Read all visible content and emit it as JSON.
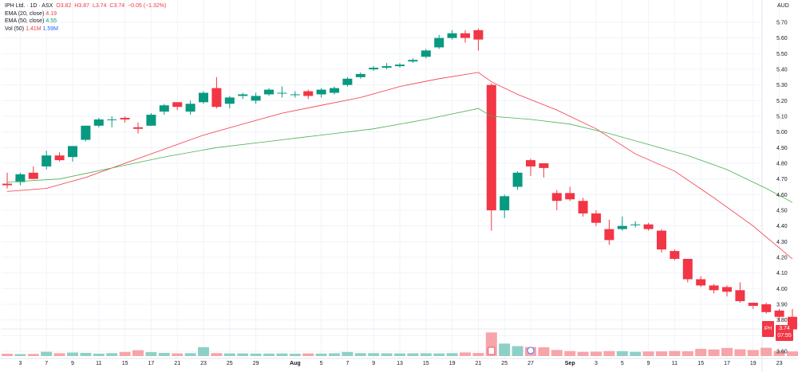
{
  "legend": {
    "title": "IPH Ltd. · 1D · ASX",
    "ohlc": {
      "o": "O3.82",
      "h": "H3.87",
      "l": "L3.74",
      "c": "C3.74",
      "chg": "−0.05 (−1.32%)"
    },
    "ema20_label": "EMA (20, close)",
    "ema20_value": "4.19",
    "ema50_label": "EMA (50, close)",
    "ema50_value": "4.55",
    "vol_label": "Vol (50)",
    "vol_value1": "1.41M",
    "vol_value2": "1.59M"
  },
  "currency": "AUD",
  "symbol": "IPH",
  "last_price": "3.74",
  "countdown": "07:55",
  "colors": {
    "up": "#089981",
    "down": "#f23645",
    "ema20": "#f23645",
    "ema50": "#4caf50",
    "vol_up": "#8fd0c6",
    "vol_down": "#f7a4aa"
  },
  "chart_data": {
    "type": "candlestick",
    "ylim": [
      3.56,
      5.78
    ],
    "y_ticks": [
      "5.70",
      "5.60",
      "5.50",
      "5.40",
      "5.30",
      "5.20",
      "5.10",
      "5.00",
      "4.90",
      "4.80",
      "4.70",
      "4.60",
      "4.50",
      "4.40",
      "4.30",
      "4.20",
      "4.10",
      "4.00",
      "3.90",
      "3.80",
      "3.70",
      "3.60"
    ],
    "x_ticks": [
      {
        "i": 1,
        "label": "3"
      },
      {
        "i": 3,
        "label": "7"
      },
      {
        "i": 5,
        "label": "9"
      },
      {
        "i": 7,
        "label": "11"
      },
      {
        "i": 9,
        "label": "15"
      },
      {
        "i": 11,
        "label": "17"
      },
      {
        "i": 13,
        "label": "21"
      },
      {
        "i": 15,
        "label": "23"
      },
      {
        "i": 17,
        "label": "25"
      },
      {
        "i": 19,
        "label": "29"
      },
      {
        "i": 22,
        "label": "Aug"
      },
      {
        "i": 24,
        "label": "5"
      },
      {
        "i": 26,
        "label": "7"
      },
      {
        "i": 28,
        "label": "9"
      },
      {
        "i": 30,
        "label": "13"
      },
      {
        "i": 32,
        "label": "15"
      },
      {
        "i": 34,
        "label": "19"
      },
      {
        "i": 36,
        "label": "21"
      },
      {
        "i": 38,
        "label": "25"
      },
      {
        "i": 40,
        "label": "27"
      },
      {
        "i": 43,
        "label": "Sep"
      },
      {
        "i": 45,
        "label": "3"
      },
      {
        "i": 47,
        "label": "5"
      },
      {
        "i": 49,
        "label": "9"
      },
      {
        "i": 51,
        "label": "11"
      },
      {
        "i": 53,
        "label": "15"
      },
      {
        "i": 55,
        "label": "17"
      },
      {
        "i": 57,
        "label": "19"
      },
      {
        "i": 59,
        "label": "23"
      }
    ],
    "candles": [
      {
        "o": 4.67,
        "h": 4.74,
        "l": 4.64,
        "c": 4.66
      },
      {
        "o": 4.68,
        "h": 4.74,
        "l": 4.66,
        "c": 4.73
      },
      {
        "o": 4.74,
        "h": 4.78,
        "l": 4.7,
        "c": 4.7
      },
      {
        "o": 4.78,
        "h": 4.88,
        "l": 4.76,
        "c": 4.85
      },
      {
        "o": 4.85,
        "h": 4.87,
        "l": 4.81,
        "c": 4.82
      },
      {
        "o": 4.84,
        "h": 4.91,
        "l": 4.81,
        "c": 4.91
      },
      {
        "o": 4.95,
        "h": 5.03,
        "l": 4.94,
        "c": 5.04
      },
      {
        "o": 5.04,
        "h": 5.09,
        "l": 5.03,
        "c": 5.08
      },
      {
        "o": 5.08,
        "h": 5.1,
        "l": 5.03,
        "c": 5.08
      },
      {
        "o": 5.09,
        "h": 5.1,
        "l": 5.06,
        "c": 5.08
      },
      {
        "o": 5.03,
        "h": 5.06,
        "l": 4.99,
        "c": 5.02
      },
      {
        "o": 5.04,
        "h": 5.12,
        "l": 5.04,
        "c": 5.11
      },
      {
        "o": 5.13,
        "h": 5.18,
        "l": 5.11,
        "c": 5.17
      },
      {
        "o": 5.19,
        "h": 5.19,
        "l": 5.14,
        "c": 5.16
      },
      {
        "o": 5.13,
        "h": 5.2,
        "l": 5.11,
        "c": 5.18
      },
      {
        "o": 5.19,
        "h": 5.26,
        "l": 5.18,
        "c": 5.25
      },
      {
        "o": 5.28,
        "h": 5.35,
        "l": 5.15,
        "c": 5.16
      },
      {
        "o": 5.18,
        "h": 5.23,
        "l": 5.15,
        "c": 5.22
      },
      {
        "o": 5.23,
        "h": 5.25,
        "l": 5.21,
        "c": 5.24
      },
      {
        "o": 5.2,
        "h": 5.25,
        "l": 5.18,
        "c": 5.23
      },
      {
        "o": 5.24,
        "h": 5.28,
        "l": 5.23,
        "c": 5.27
      },
      {
        "o": 5.25,
        "h": 5.29,
        "l": 5.22,
        "c": 5.25
      },
      {
        "o": 5.24,
        "h": 5.26,
        "l": 5.22,
        "c": 5.24
      },
      {
        "o": 5.26,
        "h": 5.27,
        "l": 5.21,
        "c": 5.23
      },
      {
        "o": 5.24,
        "h": 5.28,
        "l": 5.22,
        "c": 5.27
      },
      {
        "o": 5.25,
        "h": 5.29,
        "l": 5.24,
        "c": 5.28
      },
      {
        "o": 5.3,
        "h": 5.35,
        "l": 5.29,
        "c": 5.34
      },
      {
        "o": 5.35,
        "h": 5.38,
        "l": 5.34,
        "c": 5.37
      },
      {
        "o": 5.4,
        "h": 5.42,
        "l": 5.39,
        "c": 5.41
      },
      {
        "o": 5.41,
        "h": 5.44,
        "l": 5.4,
        "c": 5.42
      },
      {
        "o": 5.42,
        "h": 5.44,
        "l": 5.41,
        "c": 5.43
      },
      {
        "o": 5.45,
        "h": 5.47,
        "l": 5.44,
        "c": 5.46
      },
      {
        "o": 5.48,
        "h": 5.53,
        "l": 5.47,
        "c": 5.52
      },
      {
        "o": 5.54,
        "h": 5.62,
        "l": 5.53,
        "c": 5.6
      },
      {
        "o": 5.6,
        "h": 5.65,
        "l": 5.59,
        "c": 5.63
      },
      {
        "o": 5.63,
        "h": 5.65,
        "l": 5.57,
        "c": 5.6
      },
      {
        "o": 5.65,
        "h": 5.66,
        "l": 5.52,
        "c": 5.59
      },
      {
        "o": 5.3,
        "h": 5.31,
        "l": 4.37,
        "c": 4.5
      },
      {
        "o": 4.5,
        "h": 4.6,
        "l": 4.45,
        "c": 4.59
      },
      {
        "o": 4.65,
        "h": 4.75,
        "l": 4.63,
        "c": 4.74
      },
      {
        "o": 4.82,
        "h": 4.83,
        "l": 4.72,
        "c": 4.78
      },
      {
        "o": 4.8,
        "h": 4.8,
        "l": 4.71,
        "c": 4.77
      },
      {
        "o": 4.61,
        "h": 4.63,
        "l": 4.5,
        "c": 4.56
      },
      {
        "o": 4.61,
        "h": 4.65,
        "l": 4.56,
        "c": 4.57
      },
      {
        "o": 4.56,
        "h": 4.58,
        "l": 4.46,
        "c": 4.48
      },
      {
        "o": 4.48,
        "h": 4.5,
        "l": 4.4,
        "c": 4.42
      },
      {
        "o": 4.38,
        "h": 4.44,
        "l": 4.28,
        "c": 4.31
      },
      {
        "o": 4.38,
        "h": 4.46,
        "l": 4.37,
        "c": 4.4
      },
      {
        "o": 4.41,
        "h": 4.43,
        "l": 4.39,
        "c": 4.41
      },
      {
        "o": 4.41,
        "h": 4.42,
        "l": 4.37,
        "c": 4.38
      },
      {
        "o": 4.37,
        "h": 4.38,
        "l": 4.23,
        "c": 4.25
      },
      {
        "o": 4.24,
        "h": 4.25,
        "l": 4.18,
        "c": 4.19
      },
      {
        "o": 4.19,
        "h": 4.19,
        "l": 4.04,
        "c": 4.06
      },
      {
        "o": 4.06,
        "h": 4.08,
        "l": 4.01,
        "c": 4.02
      },
      {
        "o": 4.02,
        "h": 4.03,
        "l": 3.97,
        "c": 3.99
      },
      {
        "o": 4.01,
        "h": 4.02,
        "l": 3.95,
        "c": 3.98
      },
      {
        "o": 3.99,
        "h": 4.04,
        "l": 3.91,
        "c": 3.92
      },
      {
        "o": 3.91,
        "h": 3.91,
        "l": 3.87,
        "c": 3.89
      },
      {
        "o": 3.9,
        "h": 3.91,
        "l": 3.84,
        "c": 3.85
      },
      {
        "o": 3.86,
        "h": 3.87,
        "l": 3.79,
        "c": 3.82
      },
      {
        "o": 3.82,
        "h": 3.87,
        "l": 3.74,
        "c": 3.74
      }
    ],
    "volume_rel": [
      0.26,
      0.22,
      0.24,
      0.48,
      0.32,
      0.4,
      0.36,
      0.27,
      0.33,
      0.46,
      0.66,
      0.44,
      0.36,
      0.3,
      0.33,
      1.0,
      0.33,
      0.3,
      0.3,
      0.28,
      0.28,
      0.3,
      0.26,
      0.3,
      0.28,
      0.31,
      0.46,
      0.33,
      0.33,
      0.31,
      0.3,
      0.31,
      0.32,
      0.3,
      0.33,
      0.41,
      0.35,
      2.65,
      1.4,
      1.12,
      1.02,
      0.98,
      0.68,
      0.56,
      0.47,
      0.49,
      0.56,
      0.55,
      0.47,
      0.51,
      0.52,
      0.57,
      0.54,
      0.81,
      0.74,
      0.91,
      0.76,
      0.68,
      0.93,
      0.58,
      0.52
    ],
    "ema20": [
      [
        0,
        4.62
      ],
      [
        3,
        4.64
      ],
      [
        6,
        4.71
      ],
      [
        9,
        4.8
      ],
      [
        12,
        4.89
      ],
      [
        15,
        4.98
      ],
      [
        18,
        5.05
      ],
      [
        21,
        5.12
      ],
      [
        24,
        5.17
      ],
      [
        27,
        5.22
      ],
      [
        30,
        5.29
      ],
      [
        33,
        5.34
      ],
      [
        36,
        5.38
      ],
      [
        37,
        5.32
      ],
      [
        39,
        5.24
      ],
      [
        42,
        5.14
      ],
      [
        45,
        5.02
      ],
      [
        48,
        4.86
      ],
      [
        51,
        4.75
      ],
      [
        54,
        4.58
      ],
      [
        57,
        4.4
      ],
      [
        60,
        4.19
      ]
    ],
    "ema50": [
      [
        0,
        4.68
      ],
      [
        4,
        4.7
      ],
      [
        8,
        4.77
      ],
      [
        12,
        4.84
      ],
      [
        16,
        4.9
      ],
      [
        20,
        4.94
      ],
      [
        24,
        4.98
      ],
      [
        28,
        5.02
      ],
      [
        32,
        5.08
      ],
      [
        36,
        5.15
      ],
      [
        37,
        5.1
      ],
      [
        40,
        5.08
      ],
      [
        43,
        5.05
      ],
      [
        46,
        4.99
      ],
      [
        49,
        4.92
      ],
      [
        52,
        4.85
      ],
      [
        55,
        4.76
      ],
      [
        58,
        4.64
      ],
      [
        60,
        4.55
      ]
    ]
  }
}
